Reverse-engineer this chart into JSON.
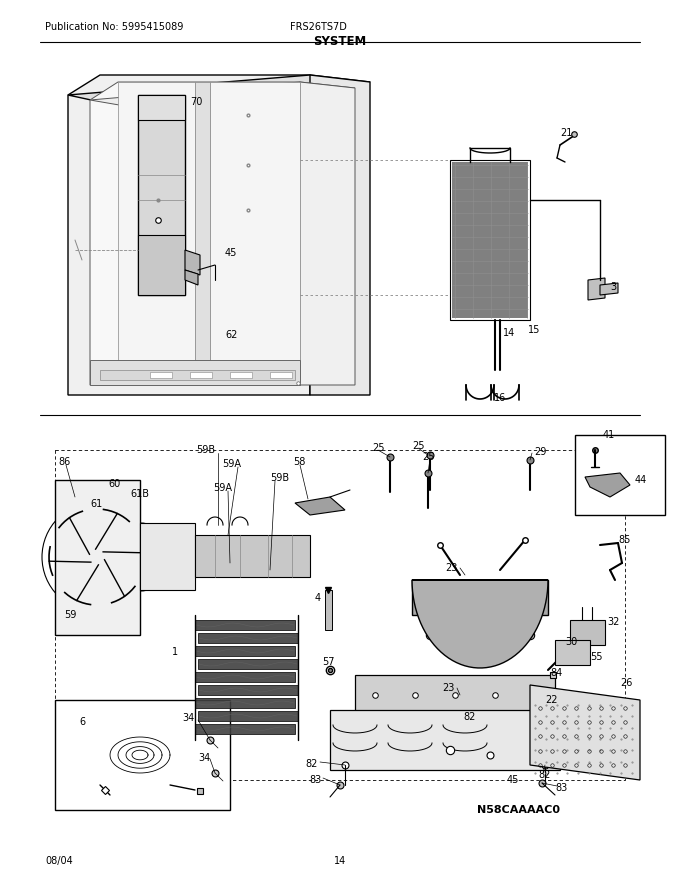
{
  "title": "SYSTEM",
  "pub_no": "Publication No: 5995415089",
  "model": "FRS26TS7D",
  "date": "08/04",
  "page": "14",
  "diagram_code": "N58CAAAAC0",
  "bg": "#ffffff",
  "lc": "#000000",
  "gc": "#888888",
  "figsize": [
    6.8,
    8.8
  ],
  "dpi": 100
}
